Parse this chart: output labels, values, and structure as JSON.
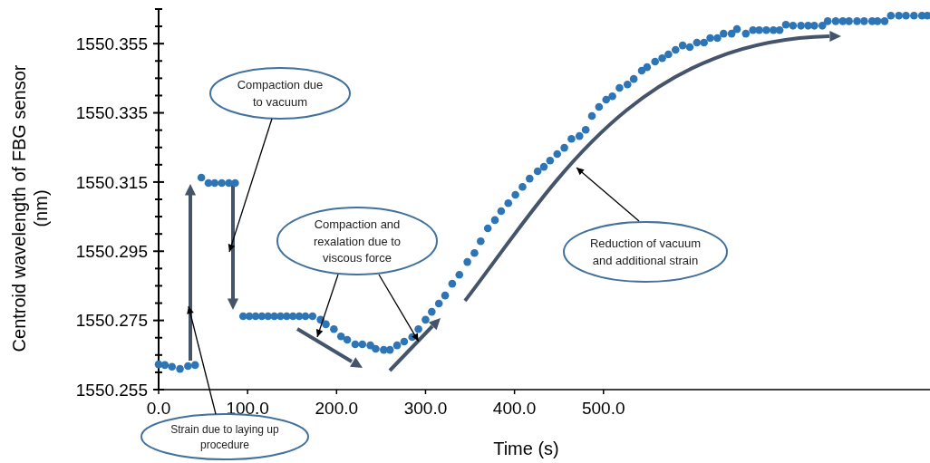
{
  "chart_data": {
    "type": "scatter",
    "xlabel": "Time (s)",
    "ylabel": "Centroid wavelength of FBG sensor (nm)",
    "marker": "circle",
    "grid": false,
    "xlim": [
      0,
      867
    ],
    "xticks": [
      {
        "value": 0,
        "label": "0.0"
      },
      {
        "value": 100,
        "label": "100.0"
      },
      {
        "value": 200,
        "label": "200.0"
      },
      {
        "value": 300,
        "label": "300.0"
      },
      {
        "value": 400,
        "label": "400.0"
      },
      {
        "value": 500,
        "label": "500.0"
      }
    ],
    "ylim": [
      1550.255,
      1550.365
    ],
    "yticks": [
      1550.255,
      {
        "value": 1550.26,
        "label": null
      },
      {
        "value": 1550.265,
        "label": null
      },
      {
        "value": 1550.27,
        "label": null
      },
      1550.275,
      {
        "value": 1550.28,
        "label": null
      },
      {
        "value": 1550.285,
        "label": null
      },
      {
        "value": 1550.29,
        "label": null
      },
      1550.295,
      {
        "value": 1550.3,
        "label": null
      },
      {
        "value": 1550.305,
        "label": null
      },
      {
        "value": 1550.31,
        "label": null
      },
      1550.315,
      {
        "value": 1550.32,
        "label": null
      },
      {
        "value": 1550.325,
        "label": null
      },
      {
        "value": 1550.33,
        "label": null
      },
      1550.335,
      {
        "value": 1550.34,
        "label": null
      },
      {
        "value": 1550.345,
        "label": null
      },
      {
        "value": 1550.35,
        "label": null
      },
      1550.355,
      {
        "value": 1550.36,
        "label": null
      },
      {
        "value": 1550.365,
        "label": null
      }
    ],
    "series": [
      {
        "color": "#2e75b6",
        "x": [
          0,
          7,
          15,
          24,
          33,
          41,
          48,
          56,
          63,
          71,
          79,
          86,
          95,
          102,
          109,
          116,
          123,
          130,
          137,
          144,
          151,
          158,
          165,
          173,
          182,
          188,
          197,
          205,
          212,
          221,
          229,
          238,
          244,
          253,
          260,
          268,
          276,
          285,
          292,
          300,
          307,
          315,
          322,
          330,
          338,
          347,
          355,
          362,
          370,
          378,
          385,
          393,
          401,
          409,
          417,
          426,
          433,
          440,
          448,
          456,
          464,
          473,
          480,
          487,
          495,
          503,
          510,
          518,
          527,
          534,
          543,
          549,
          558,
          566,
          573,
          581,
          589,
          597,
          605,
          613,
          620,
          628,
          635,
          644,
          650,
          660,
          668,
          675,
          683,
          691,
          698,
          705,
          713,
          722,
          730,
          737,
          746,
          752,
          761,
          769,
          776,
          785,
          793,
          802,
          808,
          816,
          823,
          832,
          840,
          849,
          858,
          864
        ],
        "values": [
          1550.2623,
          1550.2621,
          1550.2616,
          1550.261,
          1550.2618,
          1550.2621,
          1550.3163,
          1550.3147,
          1550.3147,
          1550.3147,
          1550.3147,
          1550.3147,
          1550.2762,
          1550.2762,
          1550.2762,
          1550.2762,
          1550.2762,
          1550.2762,
          1550.2762,
          1550.2762,
          1550.2762,
          1550.2762,
          1550.2762,
          1550.2762,
          1550.2752,
          1550.2739,
          1550.2725,
          1550.2704,
          1550.2694,
          1550.2681,
          1550.2681,
          1550.2678,
          1550.2668,
          1550.2665,
          1550.2665,
          1550.2678,
          1550.2689,
          1550.2702,
          1550.2725,
          1550.2752,
          1550.2775,
          1550.2799,
          1550.2822,
          1550.2856,
          1550.2882,
          1550.2919,
          1550.2945,
          1550.2979,
          1550.3016,
          1550.304,
          1550.3066,
          1550.3089,
          1550.3113,
          1550.3136,
          1550.316,
          1550.3181,
          1550.3194,
          1550.3212,
          1550.3231,
          1550.3249,
          1550.3275,
          1550.3283,
          1550.3301,
          1550.3341,
          1550.3367,
          1550.3388,
          1550.3398,
          1550.3422,
          1550.3432,
          1550.3448,
          1550.3472,
          1550.3482,
          1550.3498,
          1550.3508,
          1550.3519,
          1550.3532,
          1550.3545,
          1550.354,
          1550.3553,
          1550.3553,
          1550.3566,
          1550.3566,
          1550.3579,
          1550.3579,
          1550.3592,
          1550.3579,
          1550.3589,
          1550.3589,
          1550.3589,
          1550.3589,
          1550.3589,
          1550.3605,
          1550.3602,
          1550.3602,
          1550.3602,
          1550.3602,
          1550.3602,
          1550.3615,
          1550.3615,
          1550.3615,
          1550.3615,
          1550.3615,
          1550.3615,
          1550.3615,
          1550.3615,
          1550.3615,
          1550.3631,
          1550.3631,
          1550.3631,
          1550.3631,
          1550.3631,
          1550.3631
        ]
      }
    ],
    "annotations": [
      "Compaction due to vacuum",
      {
        "text": "Compaction and rexalation due to viscous force",
        "x": 292,
        "y": 1550.269
      },
      "Reduction of vacuum and additional strain",
      "Strain due to laying up procedure"
    ]
  }
}
